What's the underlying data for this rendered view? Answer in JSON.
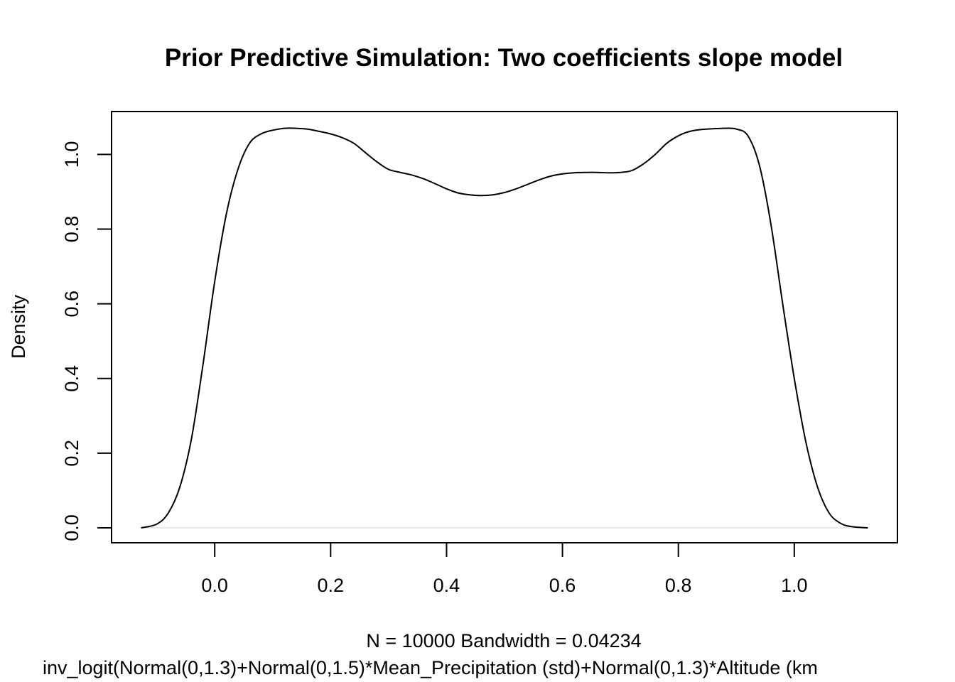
{
  "chart_data": {
    "type": "line",
    "title": "Prior Predictive Simulation: Two coefficients slope model",
    "xlabel_line1": "N = 10000   Bandwidth = 0.04234",
    "xlabel_line2": "inv_logit(Normal(0,1.3)+Normal(0,1.5)*Mean_Precipitation (std)+Normal(0,1.3)*Altitude (km",
    "ylabel": "Density",
    "n": 10000,
    "bandwidth": 0.04234,
    "xlim": [
      -0.178,
      1.178
    ],
    "ylim": [
      -0.04,
      1.115
    ],
    "x_ticks": [
      0.0,
      0.2,
      0.4,
      0.6,
      0.8,
      1.0
    ],
    "x_tick_labels": [
      "0.0",
      "0.2",
      "0.4",
      "0.6",
      "0.8",
      "1.0"
    ],
    "y_ticks": [
      0.0,
      0.2,
      0.4,
      0.6,
      0.8,
      1.0
    ],
    "y_tick_labels": [
      "0.0",
      "0.2",
      "0.4",
      "0.6",
      "0.8",
      "1.0"
    ],
    "zero_line_color": "#e0e0e0",
    "line_color": "#000000",
    "series": [
      {
        "x": [
          -0.127,
          -0.1,
          -0.08,
          -0.06,
          -0.04,
          -0.02,
          0.0,
          0.02,
          0.04,
          0.06,
          0.08,
          0.1,
          0.12,
          0.14,
          0.16,
          0.18,
          0.2,
          0.22,
          0.24,
          0.26,
          0.28,
          0.3,
          0.32,
          0.34,
          0.36,
          0.38,
          0.4,
          0.42,
          0.44,
          0.46,
          0.48,
          0.5,
          0.52,
          0.54,
          0.56,
          0.58,
          0.6,
          0.62,
          0.64,
          0.66,
          0.68,
          0.7,
          0.72,
          0.74,
          0.76,
          0.78,
          0.8,
          0.82,
          0.84,
          0.86,
          0.88,
          0.9,
          0.92,
          0.94,
          0.96,
          0.98,
          1.0,
          1.02,
          1.04,
          1.06,
          1.08,
          1.1,
          1.127
        ],
        "y": [
          0.0,
          0.01,
          0.04,
          0.11,
          0.24,
          0.44,
          0.66,
          0.84,
          0.96,
          1.03,
          1.055,
          1.065,
          1.07,
          1.07,
          1.068,
          1.062,
          1.055,
          1.045,
          1.03,
          1.005,
          0.98,
          0.96,
          0.952,
          0.945,
          0.935,
          0.922,
          0.908,
          0.897,
          0.892,
          0.89,
          0.892,
          0.898,
          0.908,
          0.92,
          0.932,
          0.942,
          0.948,
          0.951,
          0.952,
          0.952,
          0.951,
          0.952,
          0.957,
          0.975,
          1.0,
          1.03,
          1.05,
          1.062,
          1.067,
          1.069,
          1.07,
          1.068,
          1.05,
          0.97,
          0.81,
          0.6,
          0.4,
          0.23,
          0.11,
          0.04,
          0.012,
          0.003,
          0.0
        ]
      }
    ]
  }
}
